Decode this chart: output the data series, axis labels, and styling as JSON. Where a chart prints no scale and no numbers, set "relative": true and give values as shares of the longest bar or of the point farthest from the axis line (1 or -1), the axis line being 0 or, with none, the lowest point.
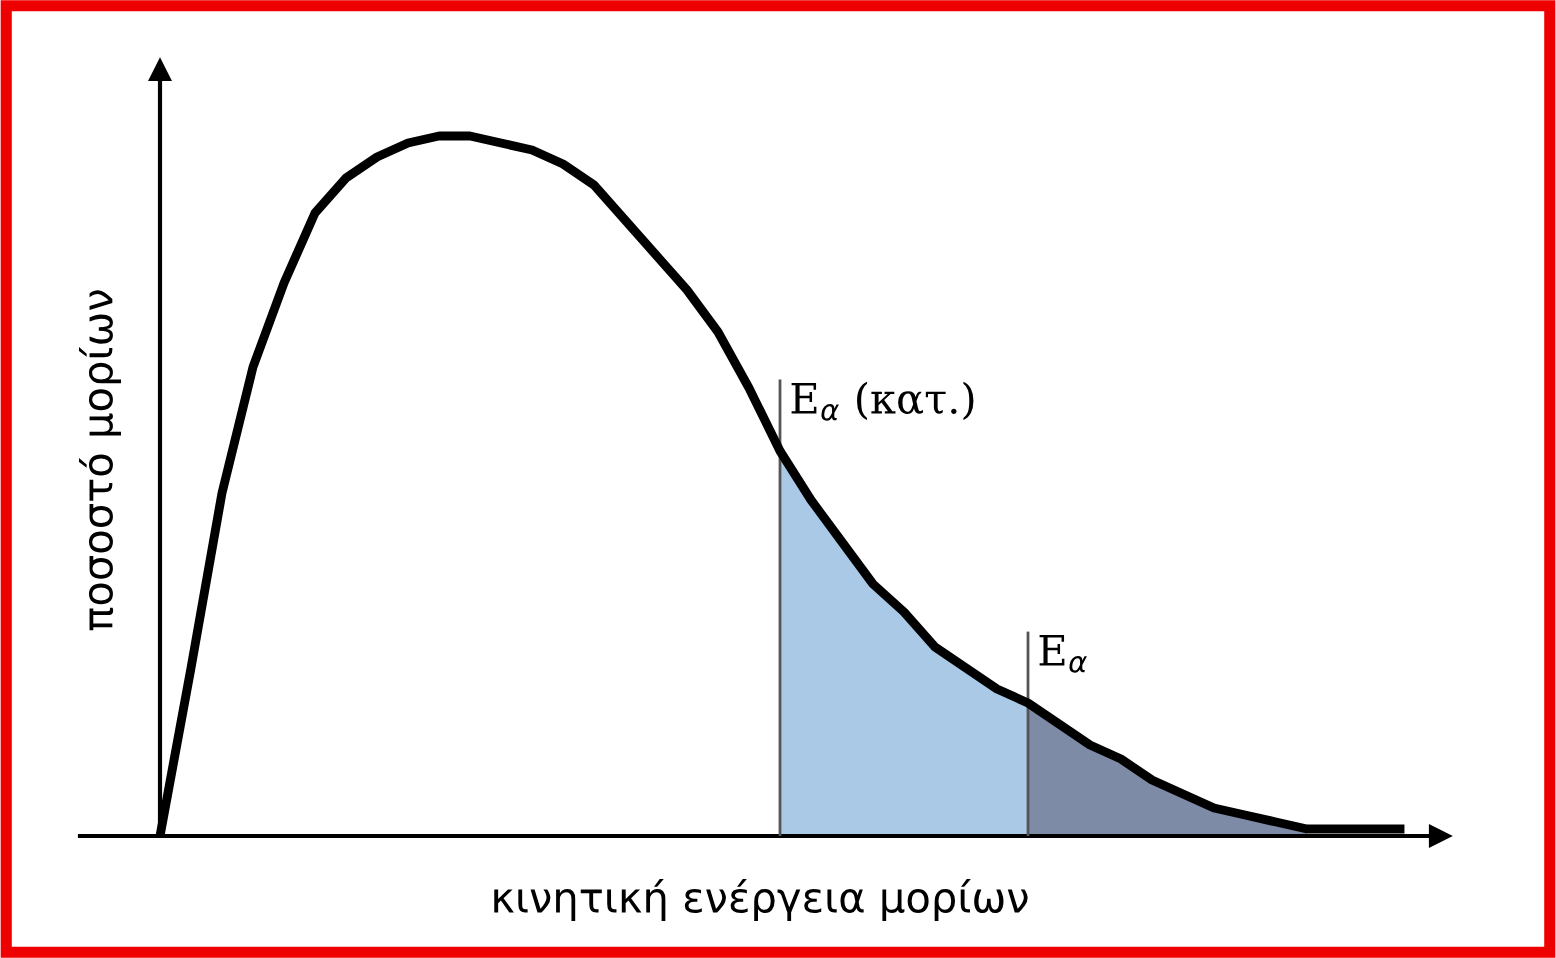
{
  "chart_data": {
    "type": "line",
    "relative": true,
    "xlabel": "κινητική ενέργεια μορίων",
    "ylabel": "ποσοστό μορίων",
    "categories": [
      null,
      null,
      null,
      null,
      null,
      null,
      null,
      null,
      null,
      null,
      null,
      null,
      null,
      null,
      null,
      null,
      null,
      null,
      null,
      null,
      null,
      null,
      null,
      null,
      null,
      null,
      null,
      null,
      null,
      null,
      null,
      null,
      null,
      null,
      null,
      null,
      null,
      null,
      null,
      null,
      null
    ],
    "series": [
      {
        "type": "area",
        "color": "#a9c9e6",
        "values": [
          null,
          null,
          null,
          null,
          null,
          null,
          null,
          null,
          null,
          null,
          null,
          null,
          null,
          null,
          null,
          null,
          null,
          null,
          null,
          null,
          0.55,
          0.48,
          0.42,
          0.36,
          0.32,
          0.27,
          0.24,
          0.21,
          0.19,
          null,
          null,
          null,
          null,
          null,
          null,
          null,
          null,
          null,
          null,
          null,
          null
        ]
      },
      {
        "type": "area",
        "color": "#7e8ba6",
        "values": [
          null,
          null,
          null,
          null,
          null,
          null,
          null,
          null,
          null,
          null,
          null,
          null,
          null,
          null,
          null,
          null,
          null,
          null,
          null,
          null,
          null,
          null,
          null,
          null,
          null,
          null,
          null,
          null,
          0.19,
          0.16,
          0.13,
          0.11,
          0.08,
          0.06,
          0.04,
          0.03,
          0.02,
          0.01,
          null,
          null,
          null
        ]
      },
      {
        "type": "line",
        "color": "#000000",
        "values": [
          0,
          0.24,
          0.49,
          0.67,
          0.79,
          0.89,
          0.94,
          0.97,
          0.99,
          1,
          1,
          0.99,
          0.98,
          0.96,
          0.93,
          0.88,
          0.83,
          0.78,
          0.72,
          0.64,
          0.55,
          0.48,
          0.42,
          0.36,
          0.32,
          0.27,
          0.24,
          0.21,
          0.19,
          0.16,
          0.13,
          0.11,
          0.08,
          0.06,
          0.04,
          0.03,
          0.02,
          0.01,
          0.01,
          0.01,
          0.01
        ]
      }
    ],
    "annotations": [
      "E$_{α}$ (κατ.)",
      "E$_{α}$"
    ],
    "grid": false,
    "legend": false,
    "marker": "none",
    "line_style": "solid"
  }
}
